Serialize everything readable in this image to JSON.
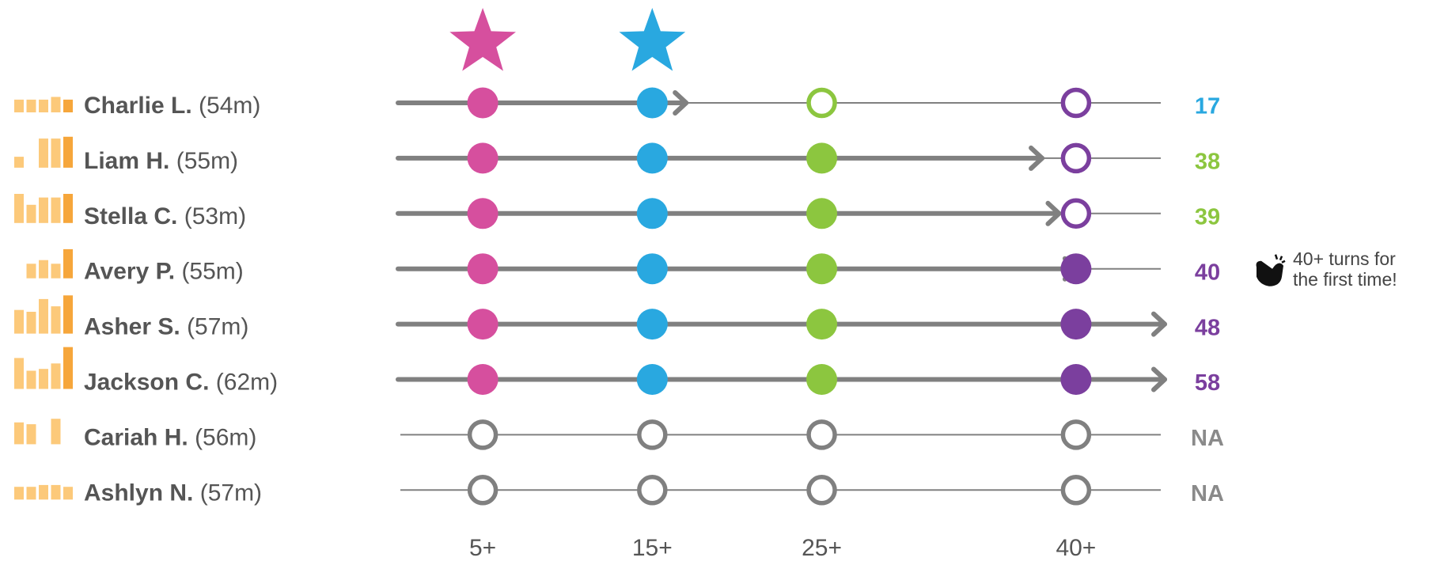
{
  "chart_data": {
    "type": "milestone-progress",
    "xlim": [
      0,
      45
    ],
    "xticks": [
      {
        "value": 5,
        "label": "5+"
      },
      {
        "value": 15,
        "label": "15+"
      },
      {
        "value": 25,
        "label": "25+"
      },
      {
        "value": 40,
        "label": "40+"
      }
    ],
    "milestone_colors": [
      "#d64f9e",
      "#29a8e0",
      "#8cc63f",
      "#7b3f9e"
    ],
    "starred": [
      0,
      1
    ],
    "rows": [
      {
        "name": "Charlie L.",
        "duration": "(54m)",
        "value": 17,
        "bars": [
          14,
          14,
          14,
          17,
          14
        ]
      },
      {
        "name": "Liam H.",
        "duration": "(55m)",
        "value": 38,
        "bars": [
          12,
          0,
          32,
          32,
          34
        ]
      },
      {
        "name": "Stella C.",
        "duration": "(53m)",
        "value": 39,
        "bars": [
          32,
          20,
          28,
          28,
          32
        ]
      },
      {
        "name": "Avery P.",
        "duration": "(55m)",
        "value": 40,
        "bars": [
          0,
          16,
          20,
          16,
          32
        ],
        "note": [
          "40+ turns for",
          "the first time!"
        ]
      },
      {
        "name": "Asher S.",
        "duration": "(57m)",
        "value": 48,
        "bars": [
          26,
          24,
          38,
          30,
          42
        ]
      },
      {
        "name": "Jackson C.",
        "duration": "(62m)",
        "value": 58,
        "bars": [
          34,
          20,
          22,
          28,
          46
        ]
      },
      {
        "name": "Cariah H.",
        "duration": "(56m)",
        "value": null,
        "value_label": "NA",
        "bars": [
          24,
          22,
          0,
          28,
          0
        ]
      },
      {
        "name": "Ashlyn N.",
        "duration": "(57m)",
        "value": null,
        "value_label": "NA",
        "bars": [
          14,
          14,
          16,
          16,
          14
        ]
      }
    ]
  }
}
